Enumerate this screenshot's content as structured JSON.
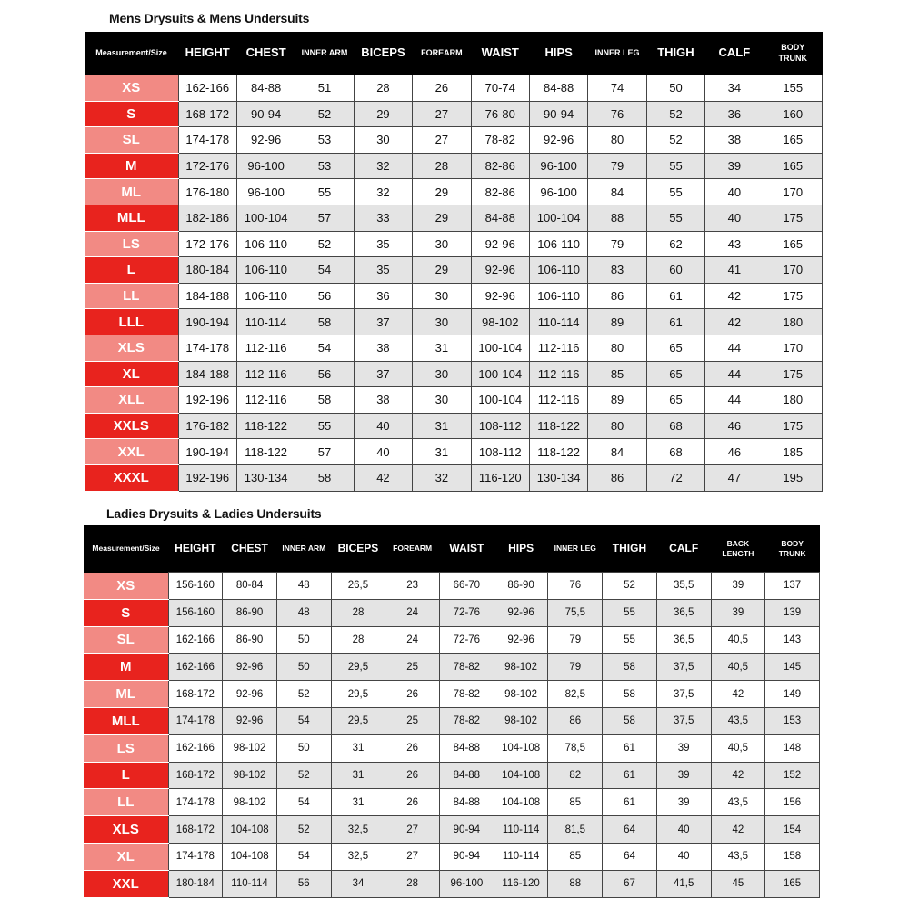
{
  "men": {
    "title": "Mens Drysuits & Mens Undersuits",
    "headers": [
      "Measurement/Size",
      "HEIGHT",
      "CHEST",
      "INNER ARM",
      "BICEPS",
      "FOREARM",
      "WAIST",
      "HIPS",
      "INNER LEG",
      "THIGH",
      "CALF",
      "BODY TRUNK"
    ],
    "rows": [
      [
        "XS",
        "162-166",
        "84-88",
        "51",
        "28",
        "26",
        "70-74",
        "84-88",
        "74",
        "50",
        "34",
        "155"
      ],
      [
        "S",
        "168-172",
        "90-94",
        "52",
        "29",
        "27",
        "76-80",
        "90-94",
        "76",
        "52",
        "36",
        "160"
      ],
      [
        "SL",
        "174-178",
        "92-96",
        "53",
        "30",
        "27",
        "78-82",
        "92-96",
        "80",
        "52",
        "38",
        "165"
      ],
      [
        "M",
        "172-176",
        "96-100",
        "53",
        "32",
        "28",
        "82-86",
        "96-100",
        "79",
        "55",
        "39",
        "165"
      ],
      [
        "ML",
        "176-180",
        "96-100",
        "55",
        "32",
        "29",
        "82-86",
        "96-100",
        "84",
        "55",
        "40",
        "170"
      ],
      [
        "MLL",
        "182-186",
        "100-104",
        "57",
        "33",
        "29",
        "84-88",
        "100-104",
        "88",
        "55",
        "40",
        "175"
      ],
      [
        "LS",
        "172-176",
        "106-110",
        "52",
        "35",
        "30",
        "92-96",
        "106-110",
        "79",
        "62",
        "43",
        "165"
      ],
      [
        "L",
        "180-184",
        "106-110",
        "54",
        "35",
        "29",
        "92-96",
        "106-110",
        "83",
        "60",
        "41",
        "170"
      ],
      [
        "LL",
        "184-188",
        "106-110",
        "56",
        "36",
        "30",
        "92-96",
        "106-110",
        "86",
        "61",
        "42",
        "175"
      ],
      [
        "LLL",
        "190-194",
        "110-114",
        "58",
        "37",
        "30",
        "98-102",
        "110-114",
        "89",
        "61",
        "42",
        "180"
      ],
      [
        "XLS",
        "174-178",
        "112-116",
        "54",
        "38",
        "31",
        "100-104",
        "112-116",
        "80",
        "65",
        "44",
        "170"
      ],
      [
        "XL",
        "184-188",
        "112-116",
        "56",
        "37",
        "30",
        "100-104",
        "112-116",
        "85",
        "65",
        "44",
        "175"
      ],
      [
        "XLL",
        "192-196",
        "112-116",
        "58",
        "38",
        "30",
        "100-104",
        "112-116",
        "89",
        "65",
        "44",
        "180"
      ],
      [
        "XXLS",
        "176-182",
        "118-122",
        "55",
        "40",
        "31",
        "108-112",
        "118-122",
        "80",
        "68",
        "46",
        "175"
      ],
      [
        "XXL",
        "190-194",
        "118-122",
        "57",
        "40",
        "31",
        "108-112",
        "118-122",
        "84",
        "68",
        "46",
        "185"
      ],
      [
        "XXXL",
        "192-196",
        "130-134",
        "58",
        "42",
        "32",
        "116-120",
        "130-134",
        "86",
        "72",
        "47",
        "195"
      ]
    ]
  },
  "ladies": {
    "title": "Ladies Drysuits & Ladies Undersuits",
    "headers": [
      "Measurement/Size",
      "HEIGHT",
      "CHEST",
      "INNER ARM",
      "BICEPS",
      "FOREARM",
      "WAIST",
      "HIPS",
      "INNER LEG",
      "THIGH",
      "CALF",
      "BACK LENGTH",
      "BODY TRUNK"
    ],
    "rows": [
      [
        "XS",
        "156-160",
        "80-84",
        "48",
        "26,5",
        "23",
        "66-70",
        "86-90",
        "76",
        "52",
        "35,5",
        "39",
        "137"
      ],
      [
        "S",
        "156-160",
        "86-90",
        "48",
        "28",
        "24",
        "72-76",
        "92-96",
        "75,5",
        "55",
        "36,5",
        "39",
        "139"
      ],
      [
        "SL",
        "162-166",
        "86-90",
        "50",
        "28",
        "24",
        "72-76",
        "92-96",
        "79",
        "55",
        "36,5",
        "40,5",
        "143"
      ],
      [
        "M",
        "162-166",
        "92-96",
        "50",
        "29,5",
        "25",
        "78-82",
        "98-102",
        "79",
        "58",
        "37,5",
        "40,5",
        "145"
      ],
      [
        "ML",
        "168-172",
        "92-96",
        "52",
        "29,5",
        "26",
        "78-82",
        "98-102",
        "82,5",
        "58",
        "37,5",
        "42",
        "149"
      ],
      [
        "MLL",
        "174-178",
        "92-96",
        "54",
        "29,5",
        "25",
        "78-82",
        "98-102",
        "86",
        "58",
        "37,5",
        "43,5",
        "153"
      ],
      [
        "LS",
        "162-166",
        "98-102",
        "50",
        "31",
        "26",
        "84-88",
        "104-108",
        "78,5",
        "61",
        "39",
        "40,5",
        "148"
      ],
      [
        "L",
        "168-172",
        "98-102",
        "52",
        "31",
        "26",
        "84-88",
        "104-108",
        "82",
        "61",
        "39",
        "42",
        "152"
      ],
      [
        "LL",
        "174-178",
        "98-102",
        "54",
        "31",
        "26",
        "84-88",
        "104-108",
        "85",
        "61",
        "39",
        "43,5",
        "156"
      ],
      [
        "XLS",
        "168-172",
        "104-108",
        "52",
        "32,5",
        "27",
        "90-94",
        "110-114",
        "81,5",
        "64",
        "40",
        "42",
        "154"
      ],
      [
        "XL",
        "174-178",
        "104-108",
        "54",
        "32,5",
        "27",
        "90-94",
        "110-114",
        "85",
        "64",
        "40",
        "43,5",
        "158"
      ],
      [
        "XXL",
        "180-184",
        "110-114",
        "56",
        "34",
        "28",
        "96-100",
        "116-120",
        "88",
        "67",
        "41,5",
        "45",
        "165"
      ]
    ]
  },
  "colors": {
    "header_bg": "#000000",
    "size_light": "#f28a84",
    "size_dark": "#e8231e",
    "row_alt": "#e4e4e4"
  }
}
